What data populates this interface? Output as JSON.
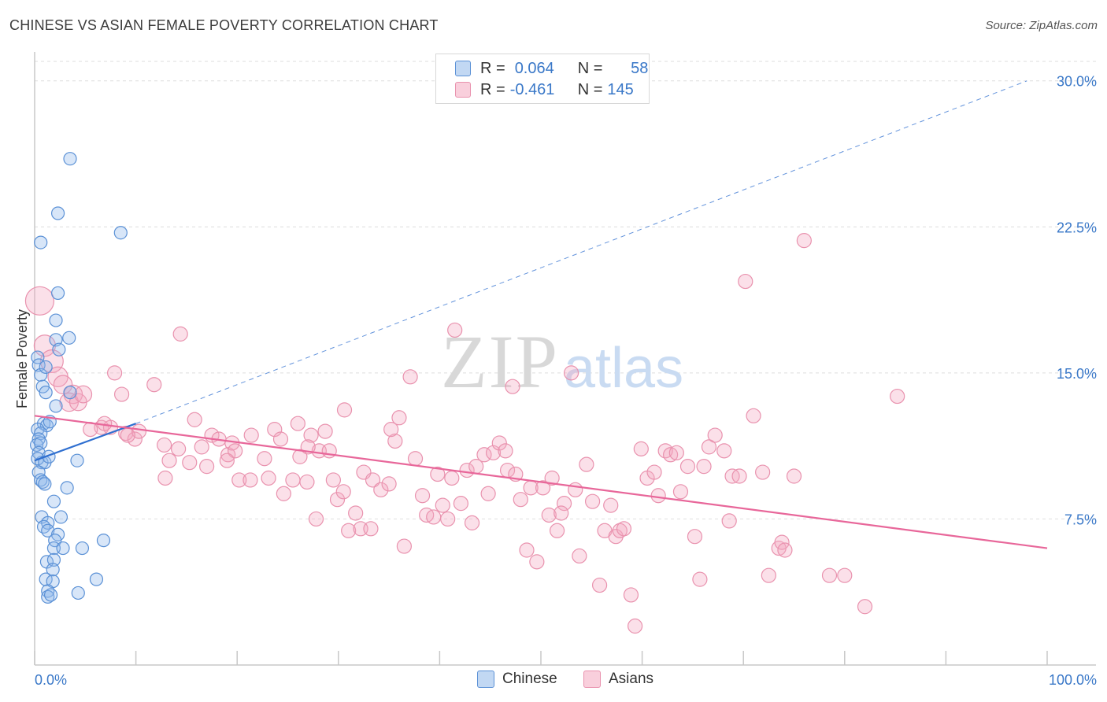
{
  "header": {
    "title": "CHINESE VS ASIAN FEMALE POVERTY CORRELATION CHART",
    "source": "Source: ZipAtlas.com"
  },
  "watermark": {
    "part1": "ZIP",
    "part2": "atlas"
  },
  "legend": {
    "rows": [
      {
        "r_label": "R =",
        "r_value": "0.064",
        "n_label": "N =",
        "n_value": "58",
        "color": "#8fb8ea"
      },
      {
        "r_label": "R =",
        "r_value": "-0.461",
        "n_label": "N =",
        "n_value": "145",
        "color": "#f4a7bf"
      }
    ]
  },
  "bottom_legend": {
    "chinese": "Chinese",
    "asians": "Asians"
  },
  "axes": {
    "ylabel": "Female Poverty",
    "x_min_label": "0.0%",
    "x_max_label": "100.0%",
    "y_ticks": [
      "7.5%",
      "15.0%",
      "22.5%",
      "30.0%"
    ]
  },
  "colors": {
    "chinese_fill": "rgba(143,184,234,0.35)",
    "chinese_stroke": "#5b91d6",
    "chinese_line": "#2f6fd0",
    "asians_fill": "rgba(244,167,191,0.35)",
    "asians_stroke": "#e992ae",
    "asians_line": "#e8679a",
    "tick_label": "#3a78c8"
  },
  "chart_data": {
    "type": "scatter",
    "title": "CHINESE VS ASIAN FEMALE POVERTY CORRELATION CHART",
    "xlabel": "",
    "ylabel": "Female Poverty",
    "xlim": [
      0,
      100
    ],
    "ylim": [
      0,
      31
    ],
    "y_ticks": [
      7.5,
      15.0,
      22.5,
      30.0
    ],
    "grid": true,
    "series": [
      {
        "name": "Chinese",
        "stats": {
          "R": 0.064,
          "N": 58
        },
        "trend": {
          "x": [
            0,
            10
          ],
          "y": [
            10.5,
            12.4
          ]
        },
        "trend_extension": {
          "x": [
            10,
            98
          ],
          "y": [
            12.4,
            30.0
          ]
        },
        "points": [
          {
            "x": 3.5,
            "y": 26.0
          },
          {
            "x": 2.3,
            "y": 23.2
          },
          {
            "x": 8.5,
            "y": 22.2
          },
          {
            "x": 0.6,
            "y": 21.7
          },
          {
            "x": 2.3,
            "y": 19.1
          },
          {
            "x": 2.1,
            "y": 17.7
          },
          {
            "x": 3.4,
            "y": 16.8
          },
          {
            "x": 2.1,
            "y": 16.7
          },
          {
            "x": 2.4,
            "y": 16.2
          },
          {
            "x": 0.3,
            "y": 15.8
          },
          {
            "x": 0.4,
            "y": 15.4
          },
          {
            "x": 0.6,
            "y": 14.9
          },
          {
            "x": 1.1,
            "y": 15.3
          },
          {
            "x": 0.8,
            "y": 14.3
          },
          {
            "x": 1.1,
            "y": 14.0
          },
          {
            "x": 3.5,
            "y": 14.0
          },
          {
            "x": 2.1,
            "y": 13.3
          },
          {
            "x": 0.9,
            "y": 12.4
          },
          {
            "x": 1.2,
            "y": 12.3
          },
          {
            "x": 1.5,
            "y": 12.5
          },
          {
            "x": 0.3,
            "y": 12.1
          },
          {
            "x": 0.6,
            "y": 11.9
          },
          {
            "x": 0.4,
            "y": 11.6
          },
          {
            "x": 0.2,
            "y": 11.3
          },
          {
            "x": 0.6,
            "y": 11.4
          },
          {
            "x": 0.4,
            "y": 10.9
          },
          {
            "x": 0.7,
            "y": 10.4
          },
          {
            "x": 0.3,
            "y": 10.6
          },
          {
            "x": 1.0,
            "y": 10.4
          },
          {
            "x": 1.4,
            "y": 10.7
          },
          {
            "x": 4.2,
            "y": 10.5
          },
          {
            "x": 0.4,
            "y": 9.9
          },
          {
            "x": 0.6,
            "y": 9.5
          },
          {
            "x": 0.8,
            "y": 9.4
          },
          {
            "x": 1.0,
            "y": 9.3
          },
          {
            "x": 3.2,
            "y": 9.1
          },
          {
            "x": 1.9,
            "y": 8.4
          },
          {
            "x": 0.7,
            "y": 7.6
          },
          {
            "x": 2.6,
            "y": 7.6
          },
          {
            "x": 1.3,
            "y": 7.3
          },
          {
            "x": 0.9,
            "y": 7.1
          },
          {
            "x": 1.3,
            "y": 6.9
          },
          {
            "x": 2.3,
            "y": 6.7
          },
          {
            "x": 2.0,
            "y": 6.4
          },
          {
            "x": 1.9,
            "y": 6.0
          },
          {
            "x": 2.8,
            "y": 6.0
          },
          {
            "x": 4.7,
            "y": 6.0
          },
          {
            "x": 6.8,
            "y": 6.4
          },
          {
            "x": 1.2,
            "y": 5.3
          },
          {
            "x": 1.9,
            "y": 5.4
          },
          {
            "x": 1.8,
            "y": 4.9
          },
          {
            "x": 1.1,
            "y": 4.4
          },
          {
            "x": 1.8,
            "y": 4.3
          },
          {
            "x": 6.1,
            "y": 4.4
          },
          {
            "x": 1.3,
            "y": 3.8
          },
          {
            "x": 4.3,
            "y": 3.7
          },
          {
            "x": 1.3,
            "y": 3.5
          },
          {
            "x": 1.6,
            "y": 3.6
          }
        ]
      },
      {
        "name": "Asians",
        "stats": {
          "R": -0.461,
          "N": 145
        },
        "trend": {
          "x": [
            0,
            100
          ],
          "y": [
            12.8,
            6.0
          ]
        },
        "points": [
          {
            "x": 0.5,
            "y": 18.7,
            "s": 2.0
          },
          {
            "x": 1.0,
            "y": 16.4,
            "s": 1.5
          },
          {
            "x": 1.7,
            "y": 15.6,
            "s": 1.6
          },
          {
            "x": 2.3,
            "y": 14.8,
            "s": 1.4
          },
          {
            "x": 2.8,
            "y": 14.4,
            "s": 1.3
          },
          {
            "x": 3.8,
            "y": 13.9,
            "s": 1.3
          },
          {
            "x": 3.4,
            "y": 13.5,
            "s": 1.3
          },
          {
            "x": 4.3,
            "y": 13.5,
            "s": 1.2
          },
          {
            "x": 4.8,
            "y": 13.9,
            "s": 1.2
          },
          {
            "x": 6.6,
            "y": 12.2
          },
          {
            "x": 7.5,
            "y": 12.2
          },
          {
            "x": 5.5,
            "y": 12.1
          },
          {
            "x": 6.9,
            "y": 12.4
          },
          {
            "x": 8.6,
            "y": 13.9
          },
          {
            "x": 7.9,
            "y": 15.0
          },
          {
            "x": 11.8,
            "y": 14.4
          },
          {
            "x": 14.4,
            "y": 17.0
          },
          {
            "x": 15.8,
            "y": 12.6
          },
          {
            "x": 9.0,
            "y": 11.9
          },
          {
            "x": 9.9,
            "y": 11.6
          },
          {
            "x": 10.3,
            "y": 12.0
          },
          {
            "x": 9.2,
            "y": 11.8
          },
          {
            "x": 12.8,
            "y": 11.3
          },
          {
            "x": 13.3,
            "y": 10.5
          },
          {
            "x": 14.2,
            "y": 11.1
          },
          {
            "x": 12.9,
            "y": 9.6
          },
          {
            "x": 15.3,
            "y": 10.4
          },
          {
            "x": 16.5,
            "y": 11.2
          },
          {
            "x": 17.0,
            "y": 10.2
          },
          {
            "x": 17.5,
            "y": 11.8
          },
          {
            "x": 18.2,
            "y": 11.6
          },
          {
            "x": 19.1,
            "y": 10.8
          },
          {
            "x": 19.5,
            "y": 11.4
          },
          {
            "x": 19.8,
            "y": 11.0
          },
          {
            "x": 20.2,
            "y": 9.5
          },
          {
            "x": 21.3,
            "y": 9.5
          },
          {
            "x": 21.4,
            "y": 11.8
          },
          {
            "x": 22.7,
            "y": 10.6
          },
          {
            "x": 23.1,
            "y": 9.6
          },
          {
            "x": 23.7,
            "y": 12.1
          },
          {
            "x": 24.3,
            "y": 11.6
          },
          {
            "x": 24.6,
            "y": 8.8
          },
          {
            "x": 25.5,
            "y": 9.5
          },
          {
            "x": 26.0,
            "y": 12.4
          },
          {
            "x": 26.2,
            "y": 10.7
          },
          {
            "x": 26.9,
            "y": 9.4
          },
          {
            "x": 27.3,
            "y": 11.8
          },
          {
            "x": 27.8,
            "y": 7.5
          },
          {
            "x": 28.1,
            "y": 11.0
          },
          {
            "x": 28.7,
            "y": 12.0
          },
          {
            "x": 29.1,
            "y": 11.0
          },
          {
            "x": 29.5,
            "y": 9.5
          },
          {
            "x": 29.9,
            "y": 8.5
          },
          {
            "x": 30.6,
            "y": 13.1
          },
          {
            "x": 31.0,
            "y": 6.9
          },
          {
            "x": 31.7,
            "y": 7.8
          },
          {
            "x": 32.2,
            "y": 7.0
          },
          {
            "x": 32.5,
            "y": 9.9
          },
          {
            "x": 33.2,
            "y": 7.0
          },
          {
            "x": 33.4,
            "y": 9.5
          },
          {
            "x": 34.2,
            "y": 9.0
          },
          {
            "x": 35.0,
            "y": 9.3
          },
          {
            "x": 35.6,
            "y": 11.5
          },
          {
            "x": 36.0,
            "y": 12.7
          },
          {
            "x": 36.5,
            "y": 6.1
          },
          {
            "x": 37.1,
            "y": 14.8
          },
          {
            "x": 37.6,
            "y": 10.6
          },
          {
            "x": 38.3,
            "y": 8.7
          },
          {
            "x": 38.7,
            "y": 7.7
          },
          {
            "x": 39.4,
            "y": 7.6
          },
          {
            "x": 39.8,
            "y": 9.8
          },
          {
            "x": 40.3,
            "y": 8.2
          },
          {
            "x": 40.8,
            "y": 7.5
          },
          {
            "x": 41.2,
            "y": 9.6
          },
          {
            "x": 41.5,
            "y": 17.2
          },
          {
            "x": 42.1,
            "y": 8.3
          },
          {
            "x": 42.7,
            "y": 10.0
          },
          {
            "x": 43.6,
            "y": 10.2
          },
          {
            "x": 44.4,
            "y": 10.8
          },
          {
            "x": 44.8,
            "y": 8.8
          },
          {
            "x": 45.3,
            "y": 10.9
          },
          {
            "x": 45.9,
            "y": 11.4
          },
          {
            "x": 46.7,
            "y": 10.0
          },
          {
            "x": 47.2,
            "y": 14.3
          },
          {
            "x": 47.5,
            "y": 9.8
          },
          {
            "x": 48.0,
            "y": 8.5
          },
          {
            "x": 48.6,
            "y": 5.9
          },
          {
            "x": 49.0,
            "y": 9.1
          },
          {
            "x": 49.6,
            "y": 5.3
          },
          {
            "x": 50.2,
            "y": 9.1
          },
          {
            "x": 50.8,
            "y": 7.7
          },
          {
            "x": 51.1,
            "y": 9.6
          },
          {
            "x": 51.6,
            "y": 6.9
          },
          {
            "x": 52.3,
            "y": 8.3
          },
          {
            "x": 53.0,
            "y": 15.0
          },
          {
            "x": 53.4,
            "y": 9.0
          },
          {
            "x": 53.8,
            "y": 5.6
          },
          {
            "x": 54.5,
            "y": 10.3
          },
          {
            "x": 55.1,
            "y": 8.4
          },
          {
            "x": 55.8,
            "y": 4.1
          },
          {
            "x": 56.3,
            "y": 6.9
          },
          {
            "x": 56.9,
            "y": 8.2
          },
          {
            "x": 57.4,
            "y": 6.6
          },
          {
            "x": 57.8,
            "y": 6.9
          },
          {
            "x": 58.2,
            "y": 7.0
          },
          {
            "x": 58.9,
            "y": 3.6
          },
          {
            "x": 59.3,
            "y": 2.0
          },
          {
            "x": 59.9,
            "y": 11.1
          },
          {
            "x": 60.5,
            "y": 9.6
          },
          {
            "x": 61.2,
            "y": 9.9
          },
          {
            "x": 61.6,
            "y": 8.7
          },
          {
            "x": 62.3,
            "y": 11.0
          },
          {
            "x": 62.8,
            "y": 10.8
          },
          {
            "x": 63.4,
            "y": 10.9
          },
          {
            "x": 63.8,
            "y": 8.9
          },
          {
            "x": 64.5,
            "y": 10.2
          },
          {
            "x": 65.2,
            "y": 6.6
          },
          {
            "x": 65.7,
            "y": 4.4
          },
          {
            "x": 66.1,
            "y": 10.2
          },
          {
            "x": 66.6,
            "y": 11.2
          },
          {
            "x": 67.2,
            "y": 11.8
          },
          {
            "x": 68.1,
            "y": 11.0
          },
          {
            "x": 68.6,
            "y": 7.4
          },
          {
            "x": 68.9,
            "y": 9.7
          },
          {
            "x": 69.6,
            "y": 9.7
          },
          {
            "x": 70.2,
            "y": 19.7
          },
          {
            "x": 71.0,
            "y": 12.8
          },
          {
            "x": 71.9,
            "y": 9.9
          },
          {
            "x": 72.5,
            "y": 4.6
          },
          {
            "x": 73.5,
            "y": 6.0
          },
          {
            "x": 73.8,
            "y": 6.3
          },
          {
            "x": 74.1,
            "y": 5.9
          },
          {
            "x": 75.0,
            "y": 9.7
          },
          {
            "x": 76.0,
            "y": 21.8
          },
          {
            "x": 78.5,
            "y": 4.6
          },
          {
            "x": 80.0,
            "y": 4.6
          },
          {
            "x": 82.0,
            "y": 3.0
          },
          {
            "x": 85.2,
            "y": 13.8
          },
          {
            "x": 46.5,
            "y": 11.0
          },
          {
            "x": 35.2,
            "y": 12.1
          },
          {
            "x": 27.0,
            "y": 11.2
          },
          {
            "x": 19.0,
            "y": 10.5
          },
          {
            "x": 43.2,
            "y": 7.3
          },
          {
            "x": 52.0,
            "y": 7.8
          },
          {
            "x": 30.5,
            "y": 8.9
          }
        ]
      }
    ]
  }
}
